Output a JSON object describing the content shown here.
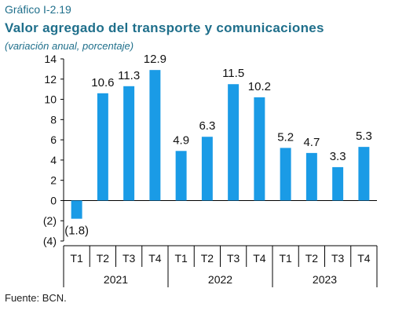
{
  "header": {
    "label": "Gráfico I-2.19",
    "title": "Valor agregado del transporte y comunicaciones",
    "subtitle": "(variación anual, porcentaje)"
  },
  "source": "Fuente: BCN.",
  "colors": {
    "bar": "#1a9be6",
    "axis": "#000000"
  },
  "chart_data": {
    "type": "bar",
    "title": "Valor agregado del transporte y comunicaciones",
    "subtitle": "(variación anual, porcentaje)",
    "ylim": [
      -4,
      14
    ],
    "yticks": [
      -4,
      -2,
      0,
      2,
      4,
      6,
      8,
      10,
      12,
      14
    ],
    "ytick_labels": [
      "(4)",
      "(2)",
      "0",
      "2",
      "4",
      "6",
      "8",
      "10",
      "12",
      "14"
    ],
    "grid": false,
    "groups": [
      {
        "year": "2021",
        "quarters": [
          "T1",
          "T2",
          "T3",
          "T4"
        ],
        "values": [
          -1.8,
          10.6,
          11.3,
          12.9
        ],
        "labels": [
          "(1.8)",
          "10.6",
          "11.3",
          "12.9"
        ]
      },
      {
        "year": "2022",
        "quarters": [
          "T1",
          "T2",
          "T3",
          "T4"
        ],
        "values": [
          4.9,
          6.3,
          11.5,
          10.2
        ],
        "labels": [
          "4.9",
          "6.3",
          "11.5",
          "10.2"
        ]
      },
      {
        "year": "2023",
        "quarters": [
          "T1",
          "T2",
          "T3",
          "T4"
        ],
        "values": [
          5.2,
          4.7,
          3.3,
          5.3
        ],
        "labels": [
          "5.2",
          "4.7",
          "3.3",
          "5.3"
        ]
      }
    ]
  }
}
